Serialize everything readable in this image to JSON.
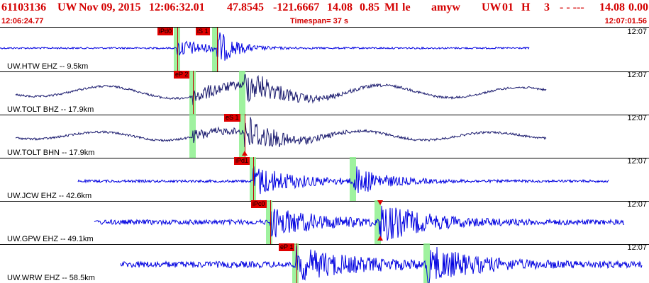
{
  "header": {
    "event_id": "61103136",
    "network": "UW",
    "date": "Nov 09, 2015",
    "time": "12:06:32.01",
    "lat": "47.8545",
    "lon": "-121.6667",
    "depth": "14.08",
    "magnitude": "0.85",
    "mag_type": "Ml",
    "event_type": "le",
    "analyst": "amyw",
    "source": "UW",
    "version": "01",
    "rflag": "H",
    "count": "3",
    "extra": "- - ---",
    "depth2": "14.08",
    "tail": "0.00"
  },
  "subheader": {
    "start_time": "12:06:24.77",
    "timespan": "Timespan=  37 s",
    "end_time": "12:07:01.56"
  },
  "colors": {
    "title": "#d40000",
    "trace_blue": "#0000e0",
    "trace_navy": "#1a1a6e",
    "pick_red": "#e00000",
    "shade_green": "#8ef08e"
  },
  "channels": [
    {
      "label": "UW.HTW EHZ -- 9.5km",
      "time": "12:07",
      "picks": [
        {
          "label": "iPd0"
        },
        {
          "label": "iS 1"
        }
      ]
    },
    {
      "label": "UW.TOLT BHZ -- 17.9km",
      "time": "12:07",
      "picks": [
        {
          "label": "eP 2"
        }
      ]
    },
    {
      "label": "UW.TOLT BHN -- 17.9km",
      "time": "12:07",
      "picks": [
        {
          "label": "eS 1"
        }
      ]
    },
    {
      "label": "UW.JCW EHZ -- 42.6km",
      "time": "12:07",
      "picks": [
        {
          "label": "iPd1"
        }
      ]
    },
    {
      "label": "UW.GPW EHZ -- 49.1km",
      "time": "12:07",
      "picks": [
        {
          "label": "iPc0"
        }
      ]
    },
    {
      "label": "UW.WRW EHZ -- 58.5km",
      "time": "12:07",
      "picks": [
        {
          "label": "eP 1"
        }
      ]
    }
  ]
}
